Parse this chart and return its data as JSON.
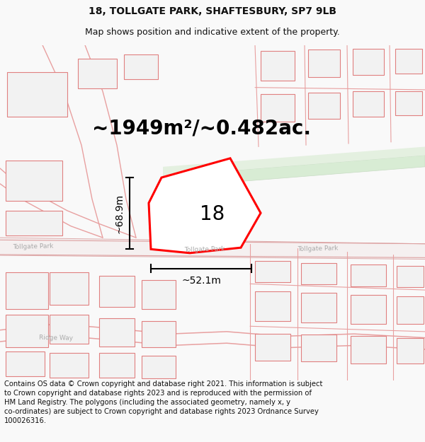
{
  "title_line1": "18, TOLLGATE PARK, SHAFTESBURY, SP7 9LB",
  "title_line2": "Map shows position and indicative extent of the property.",
  "footer_text": "Contains OS data © Crown copyright and database right 2021. This information is subject to Crown copyright and database rights 2023 and is reproduced with the permission of HM Land Registry. The polygons (including the associated geometry, namely x, y co-ordinates) are subject to Crown copyright and database rights 2023 Ordnance Survey 100026316.",
  "area_label": "~1949m²/~0.482ac.",
  "property_number": "18",
  "height_label": "~68.9m",
  "width_label": "~52.1m",
  "bg_color": "#f9f9f9",
  "map_bg": "#ffffff",
  "plot_color": "#ff0000",
  "green_color": "#d8ecd4",
  "road_label_color": "#aaaaaa",
  "title_fontsize": 10,
  "subtitle_fontsize": 9,
  "area_fontsize": 20,
  "label_fontsize": 10,
  "number_fontsize": 20,
  "footer_fontsize": 7.2,
  "building_fill": "#f2f2f2",
  "building_ec": "#e08080",
  "building_lw": 0.8
}
